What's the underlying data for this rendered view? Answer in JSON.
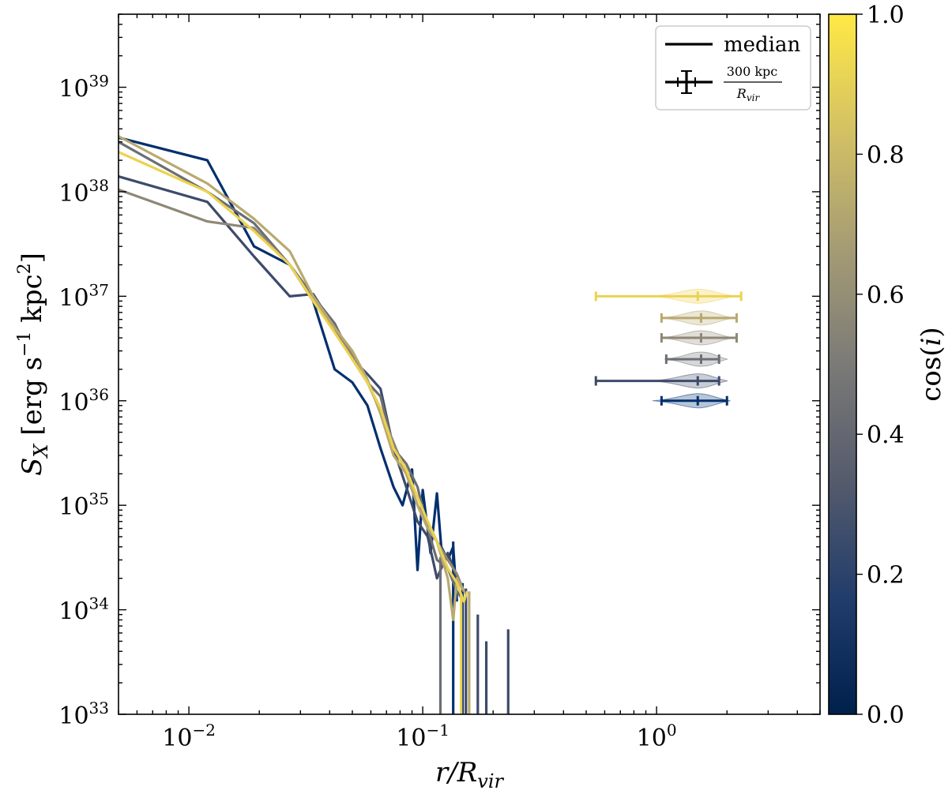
{
  "chart_data": {
    "type": "line",
    "xscale": "log",
    "yscale": "log",
    "xlim": [
      0.005,
      5
    ],
    "ylim": [
      1e+33,
      5e+39
    ],
    "x_ticks": [
      0.01,
      0.1,
      1
    ],
    "x_tick_labels": [
      {
        "base": "10",
        "exp": "−2"
      },
      {
        "base": "10",
        "exp": "−1"
      },
      {
        "base": "10",
        "exp": "0"
      }
    ],
    "y_ticks": [
      1e+33,
      1e+34,
      1e+35,
      1e+36,
      1e+37,
      1e+38,
      1e+39
    ],
    "y_tick_labels": [
      {
        "base": "10",
        "exp": "33"
      },
      {
        "base": "10",
        "exp": "34"
      },
      {
        "base": "10",
        "exp": "35"
      },
      {
        "base": "10",
        "exp": "36"
      },
      {
        "base": "10",
        "exp": "37"
      },
      {
        "base": "10",
        "exp": "38"
      },
      {
        "base": "10",
        "exp": "39"
      }
    ],
    "xlabel": {
      "main": "r/R",
      "sub": "vir"
    },
    "ylabel": {
      "pre": "S",
      "sub": "X",
      "rest": " [erg s",
      "exp1": "−1",
      "mid": " kpc",
      "exp2": "2",
      "post": "]"
    },
    "legend": {
      "position": "top-right",
      "median_label": "median",
      "errbar_num": "300 kpc",
      "errbar_den": "R",
      "errbar_den_sub": "vir"
    },
    "colorbar": {
      "label": "cos(i)",
      "range": [
        0,
        1
      ],
      "ticks": [
        0.0,
        0.2,
        0.4,
        0.6,
        0.8,
        1.0
      ],
      "tick_labels": [
        "0.0",
        "0.2",
        "0.4",
        "0.6",
        "0.8",
        "1.0"
      ],
      "colormap": "cividis",
      "stops": [
        "#00204c",
        "#213d6b",
        "#555b6c",
        "#7b7a77",
        "#a59c74",
        "#d3c164",
        "#ffe945"
      ]
    },
    "series": [
      {
        "cos_i": 0.1,
        "color": "#012f6e",
        "x": [
          0.005,
          0.012,
          0.019,
          0.027,
          0.034,
          0.042,
          0.05,
          0.058,
          0.066,
          0.075,
          0.082,
          0.09,
          0.095,
          0.1,
          0.108,
          0.115,
          0.12,
          0.128,
          0.135,
          0.14
        ],
        "y": [
          3.3e+38,
          2e+38,
          3e+37,
          2e+37,
          9e+36,
          2e+36,
          1.5e+36,
          9e+35,
          3.5e+35,
          1.5e+35,
          1e+35,
          2.2e+35,
          2.4e+34,
          1.4e+35,
          3.5e+34,
          1.3e+35,
          4e+34,
          3e+34,
          4e+34,
          1.2e+34
        ],
        "drops": [
          {
            "x": 0.135,
            "y": 4.5e+34
          },
          {
            "x": 0.148,
            "y": 1.8e+34
          }
        ]
      },
      {
        "cos_i": 0.3,
        "color": "#3e4a6a",
        "x": [
          0.005,
          0.012,
          0.019,
          0.027,
          0.034,
          0.042,
          0.05,
          0.058,
          0.066,
          0.075,
          0.085,
          0.095,
          0.105,
          0.115,
          0.128,
          0.14,
          0.15
        ],
        "y": [
          1.4e+38,
          8e+37,
          2.4e+37,
          1e+37,
          1.05e+37,
          5e+36,
          2.5e+36,
          1.8e+36,
          1.3e+36,
          3.5e+35,
          1.5e+35,
          7e+34,
          5e+34,
          2e+34,
          3.5e+34,
          2e+34,
          1.5e+34
        ],
        "drops": [
          {
            "x": 0.153,
            "y": 1.6e+34
          },
          {
            "x": 0.172,
            "y": 9e+33
          },
          {
            "x": 0.187,
            "y": 5e+33
          },
          {
            "x": 0.232,
            "y": 6.5e+33
          }
        ]
      },
      {
        "cos_i": 0.45,
        "color": "#6b6e73",
        "x": [
          0.005,
          0.012,
          0.019,
          0.027,
          0.034,
          0.042,
          0.05,
          0.058,
          0.066,
          0.075,
          0.085,
          0.095,
          0.105,
          0.115,
          0.128,
          0.14,
          0.15
        ],
        "y": [
          3e+38,
          1e+38,
          5e+37,
          2e+37,
          1e+37,
          5.5e+36,
          2.5e+36,
          1.5e+36,
          1.1e+36,
          3.5e+35,
          2.5e+35,
          1.5e+35,
          6e+34,
          3e+34,
          2.5e+34,
          1.5e+34,
          1.2e+34
        ],
        "drops": [
          {
            "x": 0.119,
            "y": 3.2e+34
          }
        ]
      },
      {
        "cos_i": 0.6,
        "color": "#8f8776",
        "x": [
          0.005,
          0.012,
          0.019,
          0.027,
          0.034,
          0.042,
          0.05,
          0.058,
          0.066,
          0.075,
          0.085,
          0.095,
          0.105,
          0.115,
          0.128,
          0.14,
          0.15
        ],
        "y": [
          1.05e+38,
          5.2e+37,
          4.5e+37,
          2e+37,
          9e+36,
          5e+36,
          2.8e+36,
          1.5e+36,
          8e+35,
          4e+35,
          2e+35,
          1e+35,
          7e+34,
          4.5e+34,
          3e+34,
          2.2e+34,
          1.5e+34
        ],
        "drops": []
      },
      {
        "cos_i": 0.75,
        "color": "#b8a96f",
        "x": [
          0.005,
          0.012,
          0.019,
          0.027,
          0.034,
          0.042,
          0.05,
          0.058,
          0.066,
          0.075,
          0.085,
          0.095,
          0.105,
          0.115,
          0.128,
          0.135,
          0.14,
          0.15
        ],
        "y": [
          3.4e+38,
          1.2e+38,
          5.5e+37,
          2.7e+37,
          1e+37,
          5e+36,
          3e+36,
          1.6e+36,
          7.5e+35,
          3e+35,
          2e+35,
          1e+35,
          6e+34,
          4.5e+34,
          2e+34,
          8e+33,
          2e+34,
          1.5e+34
        ],
        "drops": [
          {
            "x": 0.158,
            "y": 1.5e+34
          }
        ]
      },
      {
        "cos_i": 0.95,
        "color": "#ecd24f",
        "x": [
          0.005,
          0.012,
          0.019,
          0.027,
          0.034,
          0.042,
          0.05,
          0.058,
          0.066,
          0.075,
          0.085,
          0.095,
          0.105,
          0.115,
          0.128,
          0.14,
          0.15,
          0.155
        ],
        "y": [
          2.4e+38,
          1e+38,
          4.2e+37,
          2e+37,
          9e+36,
          4.5e+36,
          2.5e+36,
          1.5e+36,
          8.5e+35,
          3.5e+35,
          2.2e+35,
          1.2e+35,
          7e+34,
          4.5e+34,
          2.5e+34,
          1.8e+34,
          1.2e+34,
          1.5e+34
        ],
        "drops": [
          {
            "x": 0.146,
            "y": 1.4e+34
          }
        ]
      }
    ],
    "scale_markers": [
      {
        "cos_i": 0.95,
        "color": "#ecd24f",
        "y": 1e+37,
        "xmin": 0.55,
        "xmax": 2.3,
        "median": 1.5,
        "q1": 1.2,
        "q3": 1.9
      },
      {
        "cos_i": 0.75,
        "color": "#b8a96f",
        "y": 6.2e+36,
        "xmin": 1.05,
        "xmax": 2.2,
        "median": 1.55,
        "q1": 1.3,
        "q3": 1.85
      },
      {
        "cos_i": 0.6,
        "color": "#8f8776",
        "y": 4e+36,
        "xmin": 1.05,
        "xmax": 2.2,
        "median": 1.55,
        "q1": 1.3,
        "q3": 1.85
      },
      {
        "cos_i": 0.45,
        "color": "#6b6e73",
        "y": 2.5e+36,
        "xmin": 1.1,
        "xmax": 1.85,
        "median": 1.55,
        "q1": 1.35,
        "q3": 1.75
      },
      {
        "cos_i": 0.3,
        "color": "#3e4a6a",
        "y": 1.55e+36,
        "xmin": 0.55,
        "xmax": 1.85,
        "median": 1.5,
        "q1": 1.2,
        "q3": 1.75
      },
      {
        "cos_i": 0.1,
        "color": "#012f6e",
        "y": 1e+36,
        "xmin": 1.05,
        "xmax": 2.0,
        "median": 1.5,
        "q1": 1.2,
        "q3": 1.8
      }
    ]
  }
}
